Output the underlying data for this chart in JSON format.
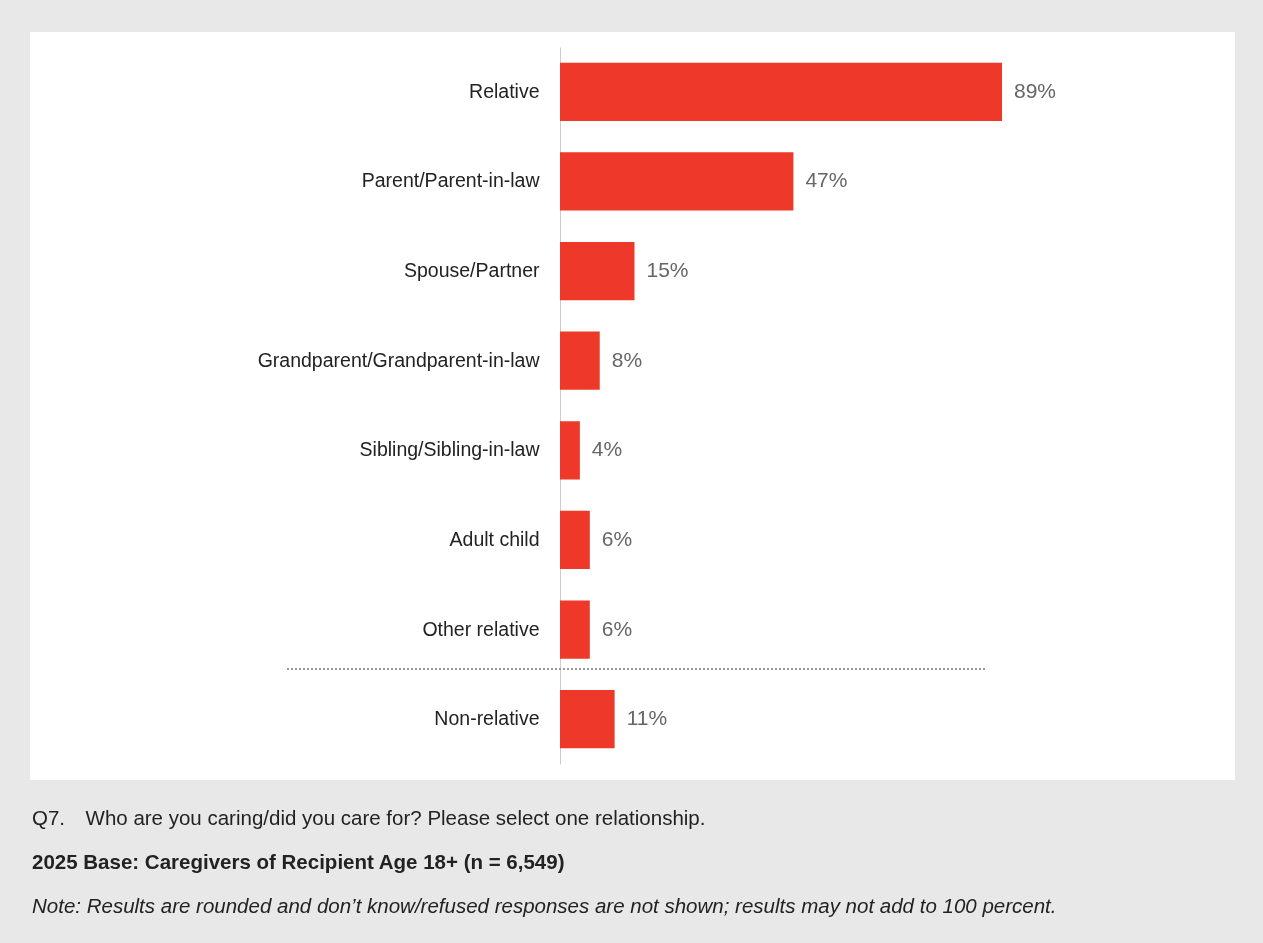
{
  "chart_data": {
    "type": "bar",
    "orientation": "horizontal",
    "categories": [
      "Relative",
      "Parent/Parent-in-law",
      "Spouse/Partner",
      "Grandparent/Grandparent-in-law",
      "Sibling/Sibling-in-law",
      "Adult child",
      "Other relative",
      "Non-relative"
    ],
    "values": [
      89,
      47,
      15,
      8,
      4,
      6,
      6,
      11
    ],
    "color": "#ee3829",
    "value_labels": [
      "89%",
      "47%",
      "15%",
      "8%",
      "4%",
      "6%",
      "6%",
      "11%"
    ],
    "annotations": [
      "Q7. Who are you caring/did you care for? Please select one relationship.",
      "2025 Base: Caregivers of Recipient Age 18+ (n = 6,549)",
      "Note: Results are rounded and don’t know/refused responses are not shown; results may not add to 100 percent."
    ]
  }
}
